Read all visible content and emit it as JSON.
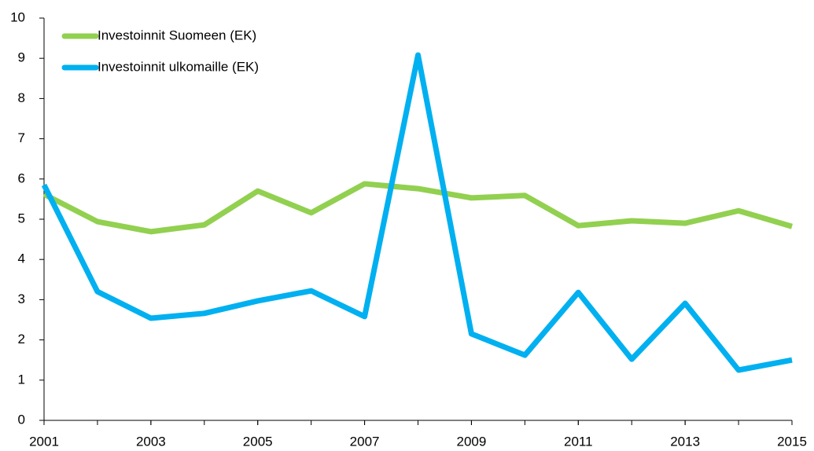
{
  "chart_data": {
    "type": "line",
    "x": [
      2001,
      2002,
      2003,
      2004,
      2005,
      2006,
      2007,
      2008,
      2009,
      2010,
      2011,
      2012,
      2013,
      2014,
      2015
    ],
    "series": [
      {
        "name": "Investoinnit Suomeen (EK)",
        "color": "#92d050",
        "values": [
          5.62,
          4.94,
          4.69,
          4.86,
          5.7,
          5.16,
          5.88,
          5.76,
          5.53,
          5.59,
          4.84,
          4.96,
          4.9,
          5.21,
          4.82
        ]
      },
      {
        "name": "Investoinnit ulkomaille (EK)",
        "color": "#00b0f0",
        "values": [
          5.85,
          3.2,
          2.54,
          2.66,
          2.97,
          3.22,
          2.58,
          9.08,
          2.15,
          1.62,
          3.18,
          1.52,
          2.91,
          1.25,
          1.5
        ]
      }
    ],
    "xlim": [
      2001,
      2015
    ],
    "xticks": [
      2001,
      2003,
      2005,
      2007,
      2009,
      2011,
      2013,
      2015
    ],
    "ylim": [
      0,
      10
    ],
    "yticks": [
      0,
      1,
      2,
      3,
      4,
      5,
      6,
      7,
      8,
      9,
      10
    ],
    "grid": false,
    "legend": "upper-left"
  }
}
